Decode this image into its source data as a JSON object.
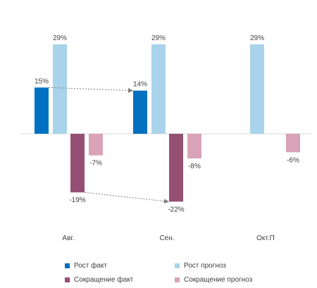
{
  "chart_data": {
    "type": "bar",
    "categories": [
      "Авг.",
      "Сен.",
      "Окт.П"
    ],
    "series": [
      {
        "name": "Рост факт",
        "values": [
          15,
          14,
          null
        ],
        "labels": [
          "15%",
          "14%",
          ""
        ],
        "color": "#0070C0"
      },
      {
        "name": "Рост прогноз",
        "values": [
          29,
          29,
          29
        ],
        "labels": [
          "29%",
          "29%",
          "29%"
        ],
        "color": "#A9D3EA"
      },
      {
        "name": "Сокращение факт",
        "values": [
          -19,
          -22,
          null
        ],
        "labels": [
          "-19%",
          "-22%",
          ""
        ],
        "color": "#954F72"
      },
      {
        "name": "Сокращение прогноз",
        "values": [
          -7,
          -8,
          -6
        ],
        "labels": [
          "-7%",
          "-8%",
          "-6%"
        ],
        "color": "#D9A2B7"
      }
    ],
    "ylim": [
      -25,
      30
    ],
    "grid": false,
    "legend_placement": "bottom",
    "arrows": [
      {
        "from_series": "Рост факт",
        "from": "Авг.",
        "to": "Сен."
      },
      {
        "from_series": "Сокращение факт",
        "from": "Авг.",
        "to": "Сен."
      }
    ]
  }
}
